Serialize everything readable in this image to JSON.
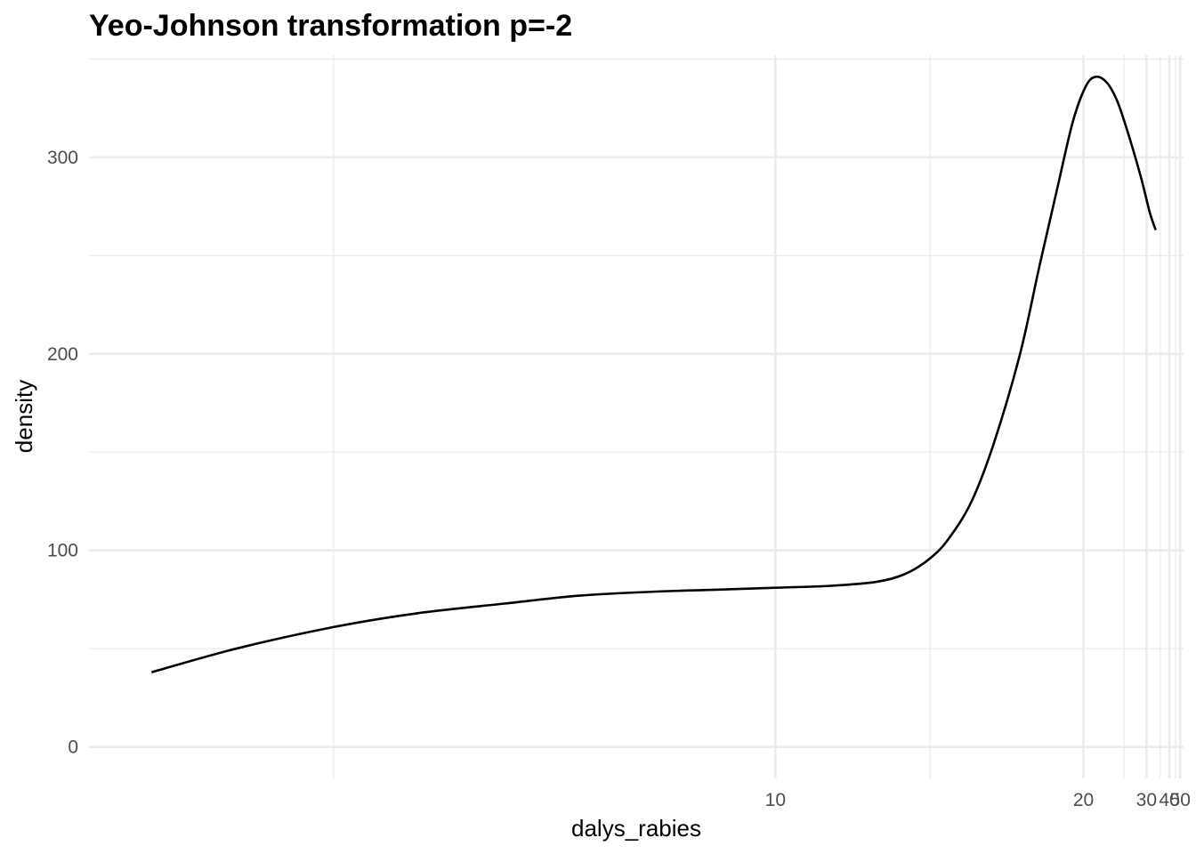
{
  "chart_data": {
    "type": "line",
    "title": "Yeo-Johnson transformation p=-2",
    "xlabel": "dalys_rabies",
    "ylabel": "density",
    "x_scale": "reciprocal-square",
    "xlim": [
      5.8,
      55
    ],
    "ylim": [
      -16,
      352
    ],
    "grid": true,
    "legend": "none",
    "x_ticks": [
      10,
      20,
      30,
      40,
      50
    ],
    "x_minor_ticks": [
      6.7,
      12.8,
      25,
      35,
      45
    ],
    "y_ticks": [
      0,
      100,
      200,
      300
    ],
    "y_minor_ticks": [
      50,
      150,
      250,
      350
    ],
    "line_color": "#000000",
    "grid_color": "#ebebeb",
    "series": [
      {
        "x": [
          6.0,
          6.3,
          6.7,
          7.1,
          7.6,
          8.1,
          8.7,
          9.3,
          10.0,
          10.8,
          11.6,
          12.2,
          12.8,
          13.3,
          14.0,
          14.8,
          15.9,
          16.9,
          18.0,
          19.1,
          20.2,
          21.2,
          22.5,
          24.0,
          26.0,
          28.5,
          31.0,
          33.1
        ],
        "values": [
          38,
          50,
          61,
          68,
          73,
          77,
          79,
          80,
          81,
          82,
          84,
          88,
          96,
          106,
          125,
          155,
          200,
          245,
          285,
          318,
          336,
          341,
          338,
          328,
          310,
          290,
          272,
          263
        ]
      }
    ]
  }
}
